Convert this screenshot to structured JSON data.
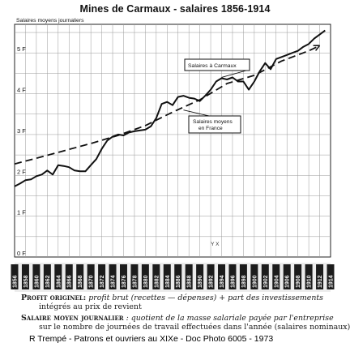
{
  "title": "Mines de Carmaux - salaires 1856-1914",
  "chart_data": {
    "type": "line",
    "ylabel": "Salaires moyens journaliers",
    "ylim": [
      0,
      5.7
    ],
    "yticks": [
      {
        "value": 0,
        "label": "0 F"
      },
      {
        "value": 1,
        "label": "1 F"
      },
      {
        "value": 2,
        "label": "2 F"
      },
      {
        "value": 3,
        "label": "3 F"
      },
      {
        "value": 4,
        "label": "4 F"
      },
      {
        "value": 5,
        "label": "5 F"
      }
    ],
    "xlim": [
      1856,
      1914
    ],
    "xticks": [
      1856,
      1858,
      1860,
      1862,
      1864,
      1866,
      1868,
      1870,
      1872,
      1874,
      1876,
      1878,
      1880,
      1882,
      1884,
      1886,
      1888,
      1890,
      1892,
      1894,
      1896,
      1898,
      1900,
      1902,
      1904,
      1906,
      1908,
      1910,
      1912,
      1914
    ],
    "grid": true,
    "annotations": [
      {
        "text": "Y X",
        "x": 1892,
        "y": 0.12
      }
    ],
    "series": [
      {
        "name": "Salaires à Carmaux",
        "style": "solid",
        "color": "#111111",
        "x": [
          1856,
          1857,
          1858,
          1859,
          1860,
          1861,
          1862,
          1863,
          1864,
          1865,
          1866,
          1867,
          1868,
          1869,
          1870,
          1871,
          1872,
          1873,
          1874,
          1875,
          1876,
          1877,
          1878,
          1879,
          1880,
          1881,
          1882,
          1883,
          1884,
          1885,
          1886,
          1887,
          1888,
          1889,
          1890,
          1891,
          1892,
          1893,
          1894,
          1895,
          1896,
          1897,
          1898,
          1899,
          1900,
          1901,
          1902,
          1903,
          1904,
          1905,
          1906,
          1907,
          1908,
          1909,
          1910,
          1911,
          1912,
          1913
        ],
        "values": [
          1.73,
          1.8,
          1.88,
          1.9,
          1.98,
          2.02,
          2.12,
          2.02,
          2.25,
          2.23,
          2.2,
          2.12,
          2.1,
          2.1,
          2.25,
          2.4,
          2.65,
          2.85,
          2.95,
          3.0,
          2.98,
          3.05,
          3.08,
          3.1,
          3.12,
          3.2,
          3.4,
          3.75,
          3.8,
          3.72,
          3.92,
          3.95,
          3.9,
          3.88,
          3.82,
          3.95,
          4.1,
          4.3,
          4.38,
          4.35,
          4.4,
          4.3,
          4.3,
          4.1,
          4.3,
          4.55,
          4.75,
          4.6,
          4.85,
          4.9,
          4.95,
          5.0,
          5.05,
          5.15,
          5.22,
          5.35,
          5.45,
          5.55
        ]
      },
      {
        "name": "Salaires moyens en France",
        "style": "dashed",
        "color": "#111111",
        "x": [
          1856,
          1860,
          1865,
          1870,
          1875,
          1880,
          1885,
          1890,
          1895,
          1900,
          1905,
          1910,
          1912
        ],
        "values": [
          2.28,
          2.42,
          2.6,
          2.78,
          2.98,
          3.22,
          3.55,
          3.85,
          4.25,
          4.45,
          4.8,
          5.05,
          5.18
        ]
      }
    ],
    "legend_labels": [
      {
        "series": 0,
        "text": "Salaires à Carmaux"
      },
      {
        "series": 1,
        "lines": [
          "Salaires moyens",
          "en France"
        ]
      }
    ]
  },
  "definitions": [
    {
      "term": "Profit originel:",
      "body": "profit brut (recettes — dépenses) + part des investissements",
      "cont": "intégrés au prix de revient"
    },
    {
      "term": "Salaire moyen journalier",
      "body": ": quotient de la masse salariale payée par l'entreprise",
      "cont": "sur le nombre de journées de travail effectuées dans l'année (salaires nominaux)"
    }
  ],
  "credit": "R Trempé - Patrons et ouvriers au XIXe - Doc Photo 6005 - 1973"
}
